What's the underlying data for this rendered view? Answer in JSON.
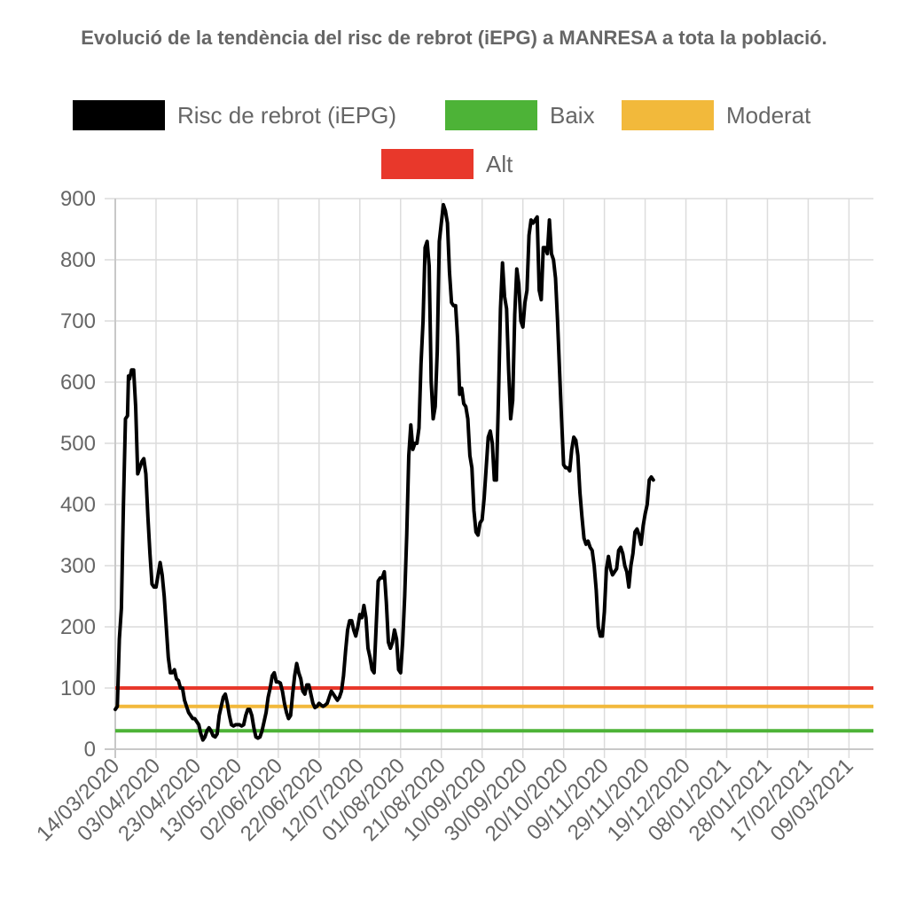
{
  "chart_data": {
    "type": "line",
    "title": "Evolució de la tendència del risc de rebrot (iEPG) a MANRESA a tota la població.",
    "xlabel": "",
    "ylabel": "",
    "ylim": [
      0,
      900
    ],
    "yticks": [
      "0",
      "100",
      "200",
      "300",
      "400",
      "500",
      "600",
      "700",
      "800",
      "900"
    ],
    "x_tick_labels": [
      "14/03/2020",
      "03/04/2020",
      "23/04/2020",
      "13/05/2020",
      "02/06/2020",
      "22/06/2020",
      "12/07/2020",
      "01/08/2020",
      "21/08/2020",
      "10/09/2020",
      "30/09/2020",
      "20/10/2020",
      "09/11/2020",
      "29/11/2020",
      "19/12/2020",
      "08/01/2021",
      "28/01/2021",
      "17/02/2021",
      "09/03/2021"
    ],
    "x_tick_days": [
      0,
      20,
      40,
      60,
      80,
      100,
      120,
      140,
      160,
      180,
      200,
      220,
      240,
      260,
      280,
      300,
      320,
      340,
      360
    ],
    "x_range_days": [
      0,
      372
    ],
    "grid": true,
    "legend_position": "top",
    "legend": [
      {
        "label": "Risc de rebrot (iEPG)",
        "color": "#000000"
      },
      {
        "label": "Baix",
        "color": "#4db337"
      },
      {
        "label": "Moderat",
        "color": "#f2b93b"
      },
      {
        "label": "Alt",
        "color": "#e8382b"
      }
    ],
    "threshold_lines": [
      {
        "name": "Alt",
        "value": 100,
        "color": "#e8382b"
      },
      {
        "name": "Moderat",
        "value": 70,
        "color": "#f2b93b"
      },
      {
        "name": "Baix",
        "value": 30,
        "color": "#4db337"
      }
    ],
    "series": [
      {
        "name": "Risc de rebrot (iEPG)",
        "color": "#000000",
        "points": [
          [
            0,
            65
          ],
          [
            1,
            70
          ],
          [
            2,
            180
          ],
          [
            3,
            230
          ],
          [
            4,
            400
          ],
          [
            5,
            540
          ],
          [
            6,
            545
          ],
          [
            6.5,
            610
          ],
          [
            7,
            605
          ],
          [
            8,
            620
          ],
          [
            9,
            620
          ],
          [
            10,
            560
          ],
          [
            11,
            450
          ],
          [
            12,
            460
          ],
          [
            13,
            470
          ],
          [
            14,
            475
          ],
          [
            15,
            450
          ],
          [
            16,
            380
          ],
          [
            17,
            320
          ],
          [
            18,
            270
          ],
          [
            19,
            265
          ],
          [
            20,
            265
          ],
          [
            21,
            285
          ],
          [
            22,
            305
          ],
          [
            23,
            285
          ],
          [
            24,
            250
          ],
          [
            25,
            200
          ],
          [
            26,
            150
          ],
          [
            27,
            125
          ],
          [
            28,
            125
          ],
          [
            29,
            130
          ],
          [
            30,
            115
          ],
          [
            31,
            112
          ],
          [
            32,
            100
          ],
          [
            33,
            100
          ],
          [
            34,
            80
          ],
          [
            35,
            70
          ],
          [
            36,
            60
          ],
          [
            37,
            55
          ],
          [
            38,
            50
          ],
          [
            39,
            50
          ],
          [
            40,
            45
          ],
          [
            41,
            40
          ],
          [
            42,
            25
          ],
          [
            43,
            15
          ],
          [
            44,
            20
          ],
          [
            45,
            30
          ],
          [
            46,
            35
          ],
          [
            47,
            30
          ],
          [
            48,
            22
          ],
          [
            49,
            20
          ],
          [
            50,
            25
          ],
          [
            51,
            55
          ],
          [
            52,
            70
          ],
          [
            53,
            85
          ],
          [
            54,
            90
          ],
          [
            55,
            75
          ],
          [
            56,
            55
          ],
          [
            57,
            40
          ],
          [
            58,
            38
          ],
          [
            59,
            40
          ],
          [
            60,
            40
          ],
          [
            61,
            40
          ],
          [
            62,
            38
          ],
          [
            63,
            40
          ],
          [
            64,
            55
          ],
          [
            65,
            65
          ],
          [
            66,
            65
          ],
          [
            67,
            55
          ],
          [
            68,
            35
          ],
          [
            69,
            20
          ],
          [
            70,
            18
          ],
          [
            71,
            20
          ],
          [
            72,
            30
          ],
          [
            73,
            45
          ],
          [
            74,
            60
          ],
          [
            75,
            85
          ],
          [
            76,
            100
          ],
          [
            77,
            120
          ],
          [
            78,
            125
          ],
          [
            79,
            110
          ],
          [
            80,
            110
          ],
          [
            81,
            108
          ],
          [
            82,
            95
          ],
          [
            83,
            75
          ],
          [
            84,
            60
          ],
          [
            85,
            50
          ],
          [
            86,
            55
          ],
          [
            87,
            90
          ],
          [
            88,
            120
          ],
          [
            89,
            140
          ],
          [
            90,
            125
          ],
          [
            91,
            115
          ],
          [
            92,
            95
          ],
          [
            93,
            90
          ],
          [
            94,
            105
          ],
          [
            95,
            105
          ],
          [
            96,
            90
          ],
          [
            97,
            75
          ],
          [
            98,
            68
          ],
          [
            99,
            70
          ],
          [
            100,
            75
          ],
          [
            101,
            72
          ],
          [
            102,
            70
          ],
          [
            103,
            72
          ],
          [
            104,
            75
          ],
          [
            105,
            85
          ],
          [
            106,
            95
          ],
          [
            107,
            90
          ],
          [
            108,
            85
          ],
          [
            109,
            80
          ],
          [
            110,
            85
          ],
          [
            111,
            95
          ],
          [
            112,
            120
          ],
          [
            113,
            160
          ],
          [
            114,
            195
          ],
          [
            115,
            210
          ],
          [
            116,
            210
          ],
          [
            117,
            195
          ],
          [
            118,
            185
          ],
          [
            119,
            200
          ],
          [
            120,
            220
          ],
          [
            121,
            215
          ],
          [
            122,
            235
          ],
          [
            123,
            215
          ],
          [
            124,
            165
          ],
          [
            125,
            150
          ],
          [
            126,
            130
          ],
          [
            127,
            125
          ],
          [
            128,
            200
          ],
          [
            129,
            275
          ],
          [
            130,
            280
          ],
          [
            131,
            280
          ],
          [
            132,
            290
          ],
          [
            133,
            240
          ],
          [
            134,
            175
          ],
          [
            135,
            165
          ],
          [
            136,
            175
          ],
          [
            137,
            195
          ],
          [
            138,
            180
          ],
          [
            139,
            130
          ],
          [
            140,
            125
          ],
          [
            141,
            175
          ],
          [
            142,
            250
          ],
          [
            143,
            350
          ],
          [
            144,
            480
          ],
          [
            145,
            530
          ],
          [
            146,
            490
          ],
          [
            147,
            500
          ],
          [
            148,
            500
          ],
          [
            149,
            525
          ],
          [
            150,
            630
          ],
          [
            151,
            700
          ],
          [
            152,
            820
          ],
          [
            153,
            830
          ],
          [
            154,
            790
          ],
          [
            155,
            600
          ],
          [
            156,
            540
          ],
          [
            157,
            560
          ],
          [
            158,
            650
          ],
          [
            159,
            830
          ],
          [
            160,
            860
          ],
          [
            161,
            890
          ],
          [
            162,
            880
          ],
          [
            163,
            860
          ],
          [
            164,
            780
          ],
          [
            165,
            730
          ],
          [
            166,
            725
          ],
          [
            167,
            725
          ],
          [
            168,
            670
          ],
          [
            169,
            580
          ],
          [
            170,
            590
          ],
          [
            171,
            565
          ],
          [
            172,
            560
          ],
          [
            173,
            540
          ],
          [
            174,
            480
          ],
          [
            175,
            460
          ],
          [
            176,
            390
          ],
          [
            177,
            355
          ],
          [
            178,
            350
          ],
          [
            179,
            370
          ],
          [
            180,
            375
          ],
          [
            181,
            410
          ],
          [
            182,
            460
          ],
          [
            183,
            510
          ],
          [
            184,
            520
          ],
          [
            185,
            500
          ],
          [
            186,
            440
          ],
          [
            187,
            440
          ],
          [
            188,
            570
          ],
          [
            189,
            720
          ],
          [
            190,
            795
          ],
          [
            191,
            740
          ],
          [
            192,
            720
          ],
          [
            193,
            620
          ],
          [
            194,
            540
          ],
          [
            195,
            570
          ],
          [
            196,
            710
          ],
          [
            197,
            785
          ],
          [
            198,
            760
          ],
          [
            199,
            700
          ],
          [
            200,
            690
          ],
          [
            201,
            730
          ],
          [
            202,
            750
          ],
          [
            203,
            840
          ],
          [
            204,
            865
          ],
          [
            205,
            860
          ],
          [
            206,
            865
          ],
          [
            207,
            870
          ],
          [
            208,
            750
          ],
          [
            209,
            735
          ],
          [
            210,
            820
          ],
          [
            211,
            820
          ],
          [
            212,
            810
          ],
          [
            213,
            865
          ],
          [
            214,
            810
          ],
          [
            215,
            800
          ],
          [
            216,
            770
          ],
          [
            217,
            700
          ],
          [
            218,
            620
          ],
          [
            219,
            540
          ],
          [
            220,
            465
          ],
          [
            221,
            460
          ],
          [
            222,
            460
          ],
          [
            223,
            455
          ],
          [
            224,
            490
          ],
          [
            225,
            510
          ],
          [
            226,
            505
          ],
          [
            227,
            480
          ],
          [
            228,
            420
          ],
          [
            229,
            380
          ],
          [
            230,
            345
          ],
          [
            231,
            335
          ],
          [
            232,
            340
          ],
          [
            233,
            330
          ],
          [
            234,
            325
          ],
          [
            235,
            300
          ],
          [
            236,
            260
          ],
          [
            237,
            200
          ],
          [
            238,
            185
          ],
          [
            239,
            185
          ],
          [
            240,
            225
          ],
          [
            241,
            295
          ],
          [
            242,
            315
          ],
          [
            243,
            295
          ],
          [
            244,
            285
          ],
          [
            245,
            290
          ],
          [
            246,
            295
          ],
          [
            247,
            325
          ],
          [
            248,
            330
          ],
          [
            249,
            320
          ],
          [
            250,
            300
          ],
          [
            251,
            290
          ],
          [
            252,
            265
          ],
          [
            253,
            300
          ],
          [
            254,
            320
          ],
          [
            255,
            355
          ],
          [
            256,
            360
          ],
          [
            257,
            350
          ],
          [
            258,
            335
          ],
          [
            259,
            365
          ],
          [
            260,
            385
          ],
          [
            261,
            400
          ],
          [
            262,
            440
          ],
          [
            263,
            445
          ],
          [
            264,
            440
          ]
        ]
      }
    ]
  }
}
